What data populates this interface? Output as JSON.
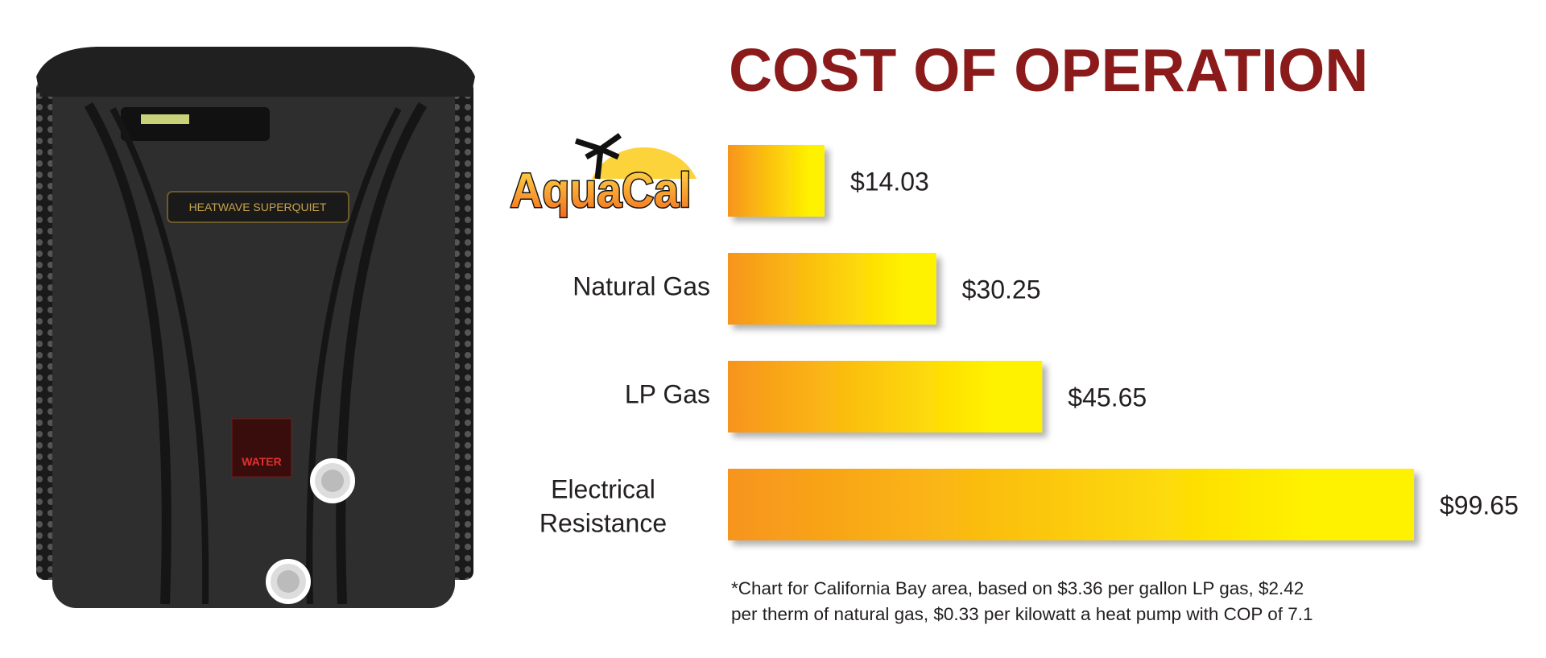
{
  "chart_data": {
    "type": "bar",
    "orientation": "horizontal",
    "title": "COST OF OPERATION",
    "categories": [
      "AquaCal",
      "Natural Gas",
      "LP Gas",
      "Electrical Resistance"
    ],
    "values": [
      14.03,
      30.25,
      45.65,
      99.65
    ],
    "value_labels": [
      "$14.03",
      "$30.25",
      "$45.65",
      "$99.65"
    ],
    "colors": [
      "#f7941d",
      "#fff200"
    ],
    "title_color": "#8b1a1a",
    "footnote": [
      "*Chart for California Bay area, based on $3.36 per gallon LP gas, $2.42",
      "per therm of natural gas, $0.33 per kilowatt a heat pump with COP of 7.1"
    ],
    "image_labels": [
      "HEATWAVE SUPERQUIET",
      "WATER"
    ]
  }
}
